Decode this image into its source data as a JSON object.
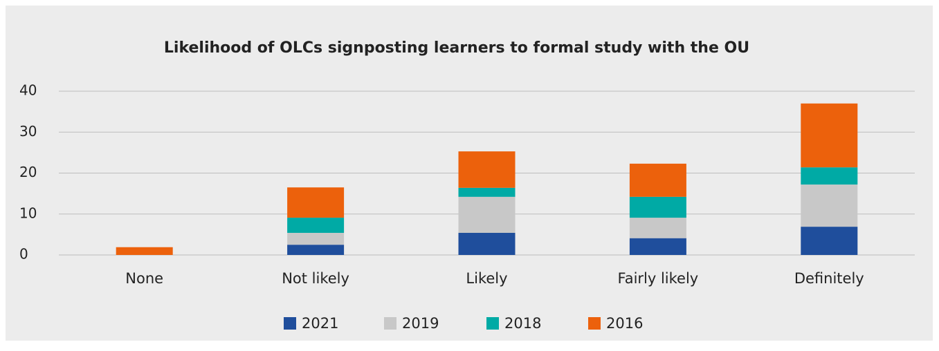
{
  "chart_data": {
    "type": "stacked_bar",
    "title": "Likelihood of OLCs signposting learners to formal study with the OU",
    "categories": [
      "None",
      "Not likely",
      "Likely",
      "Fairly likely",
      "Definitely"
    ],
    "series": [
      {
        "name": "2021",
        "color": "#1f4e9c",
        "values": [
          0,
          2.5,
          5.4,
          4.1,
          6.9
        ]
      },
      {
        "name": "2019",
        "color": "#c8c8c8",
        "values": [
          0,
          2.9,
          8.8,
          5.0,
          10.3
        ]
      },
      {
        "name": "2018",
        "color": "#00aaa5",
        "values": [
          0,
          3.7,
          2.2,
          5.1,
          4.2
        ]
      },
      {
        "name": "2016",
        "color": "#ec610c",
        "values": [
          1.9,
          7.4,
          8.9,
          8.1,
          15.6
        ]
      }
    ],
    "ylim": [
      0,
      40
    ],
    "yticks": [
      0,
      10,
      20,
      30,
      40
    ],
    "grid": true,
    "legend": "bottom"
  }
}
